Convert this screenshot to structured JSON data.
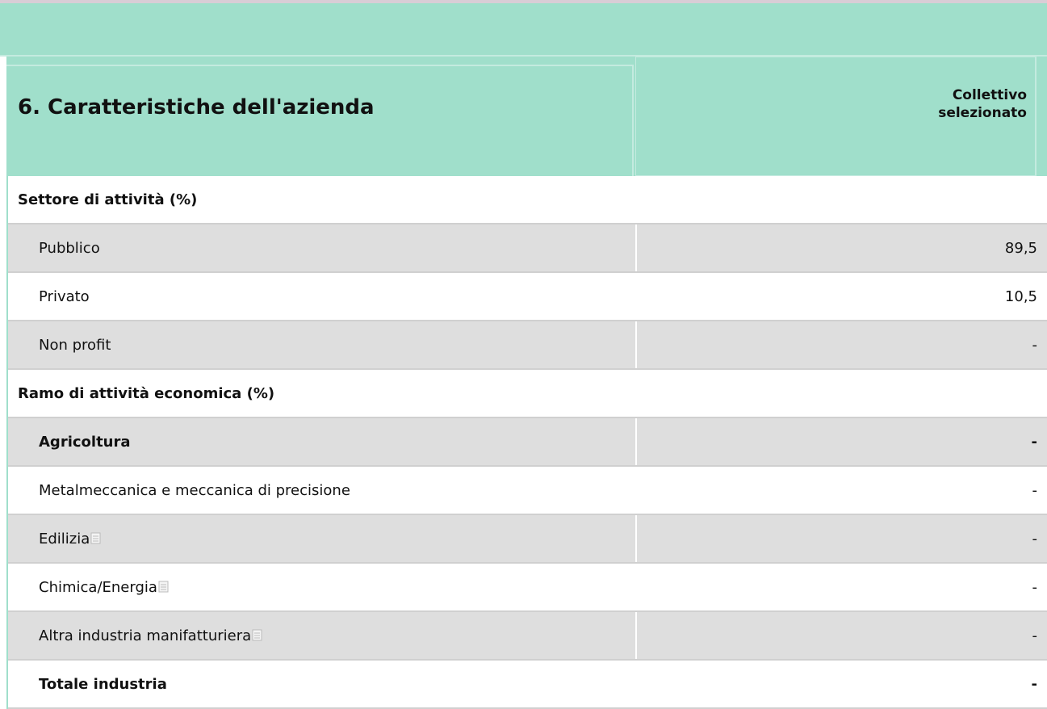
{
  "header": {
    "title": "6. Caratteristiche dell'azienda",
    "column": "Collettivo selezionato"
  },
  "sections": [
    {
      "title": "Settore di attività (%)",
      "rows": [
        {
          "label": "Pubblico",
          "value": "89,5"
        },
        {
          "label": "Privato",
          "value": "10,5"
        },
        {
          "label": "Non profit",
          "value": "-"
        }
      ]
    },
    {
      "title": "Ramo di attività economica (%)",
      "rows": [
        {
          "label": "Agricoltura",
          "value": "-"
        },
        {
          "label": "Metalmeccanica e meccanica di precisione",
          "value": "-"
        },
        {
          "label": "Edilizia",
          "value": "-"
        },
        {
          "label": "Chimica/Energia",
          "value": "-"
        },
        {
          "label": "Altra industria manifatturiera",
          "value": "-"
        },
        {
          "label": "Totale industria",
          "value": "-"
        }
      ]
    }
  ]
}
